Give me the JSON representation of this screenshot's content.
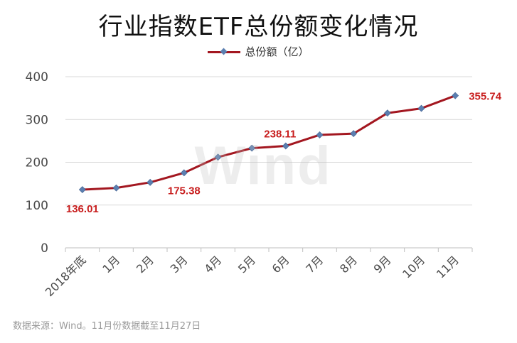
{
  "chart_data": {
    "type": "line",
    "title": "行业指数ETF总份额变化情况",
    "categories": [
      "2018年底",
      "1月",
      "2月",
      "3月",
      "4月",
      "5月",
      "6月",
      "7月",
      "8月",
      "9月",
      "10月",
      "11月"
    ],
    "series": [
      {
        "name": "总份额（亿）",
        "values": [
          136.01,
          140,
          153,
          175.38,
          212,
          233,
          238.11,
          264,
          267,
          315,
          326,
          355.74
        ]
      }
    ],
    "data_labels": [
      {
        "index": 0,
        "text": "136.01"
      },
      {
        "index": 3,
        "text": "175.38"
      },
      {
        "index": 6,
        "text": "238.11"
      },
      {
        "index": 11,
        "text": "355.74"
      }
    ],
    "yticks": [
      "0",
      "100",
      "200",
      "300",
      "400"
    ],
    "ylim": [
      0,
      400
    ],
    "grid": true,
    "legend_position": "top-center"
  },
  "colors": {
    "line": "#a31720",
    "marker": "#5b7fb0",
    "label": "#c81e1e",
    "grid": "#d9d9d9",
    "axis_text": "#4a4a4a"
  },
  "watermark": "Wind",
  "footnote": "数据来源：Wind。11月份数据截至11月27日"
}
